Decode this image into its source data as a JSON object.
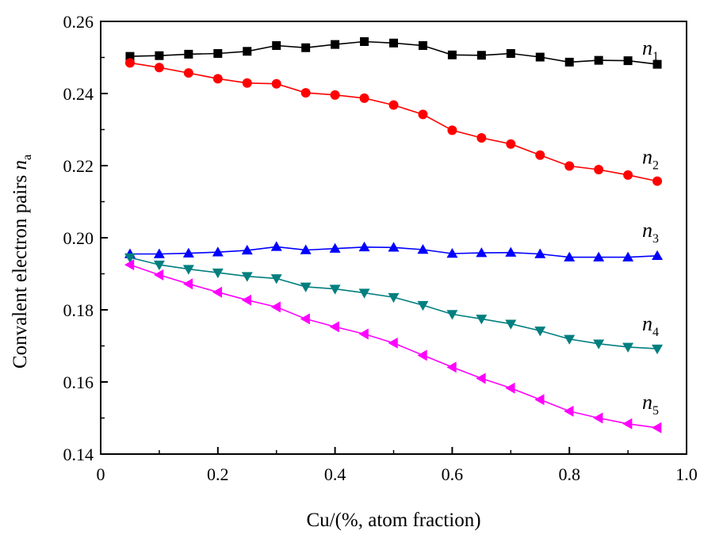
{
  "chart_data": {
    "type": "line",
    "title": "",
    "xlabel": "Cu/(%, atom fraction)",
    "ylabel": "Convalent electron pairs n",
    "ylabel_main": "Convalent electron pairs ",
    "ylabel_var": "n",
    "ylabel_sub": "a",
    "xlim": [
      0,
      1.0
    ],
    "ylim": [
      0.14,
      0.26
    ],
    "xticks": [
      0,
      0.2,
      0.4,
      0.6,
      0.8,
      1.0
    ],
    "xtick_labels": [
      "0",
      "0.2",
      "0.4",
      "0.6",
      "0.8",
      "1.0"
    ],
    "yticks": [
      0.14,
      0.16,
      0.18,
      0.2,
      0.22,
      0.24,
      0.26
    ],
    "ytick_labels": [
      "0.14",
      "0.16",
      "0.18",
      "0.20",
      "0.22",
      "0.24",
      "0.26"
    ],
    "grid": false,
    "x": [
      0.05,
      0.1,
      0.15,
      0.2,
      0.25,
      0.3,
      0.35,
      0.4,
      0.45,
      0.5,
      0.55,
      0.6,
      0.65,
      0.7,
      0.75,
      0.8,
      0.85,
      0.9,
      0.95
    ],
    "series": [
      {
        "name": "n1",
        "label_main": "n",
        "label_sub": "1",
        "color": "#000000",
        "marker": "square",
        "values": [
          0.2503,
          0.2505,
          0.2509,
          0.2511,
          0.2517,
          0.2533,
          0.2527,
          0.2536,
          0.2544,
          0.254,
          0.2533,
          0.2507,
          0.2506,
          0.2511,
          0.2501,
          0.2487,
          0.2492,
          0.2491,
          0.2481
        ]
      },
      {
        "name": "n2",
        "label_main": "n",
        "label_sub": "2",
        "color": "#ff0000",
        "marker": "circle",
        "values": [
          0.2485,
          0.2472,
          0.2457,
          0.2441,
          0.2429,
          0.2427,
          0.2402,
          0.2396,
          0.2387,
          0.2368,
          0.2342,
          0.2298,
          0.2277,
          0.226,
          0.2229,
          0.2199,
          0.2189,
          0.2174,
          0.2157
        ]
      },
      {
        "name": "n3",
        "label_main": "n",
        "label_sub": "3",
        "color": "#0000ff",
        "marker": "triangle-up",
        "values": [
          0.1955,
          0.1955,
          0.1957,
          0.196,
          0.1965,
          0.1975,
          0.1966,
          0.197,
          0.1974,
          0.1973,
          0.1967,
          0.1956,
          0.1958,
          0.1959,
          0.1955,
          0.1946,
          0.1946,
          0.1946,
          0.195
        ]
      },
      {
        "name": "n4",
        "label_main": "n",
        "label_sub": "4",
        "color": "#007f7f",
        "marker": "triangle-down",
        "values": [
          0.1945,
          0.1925,
          0.1913,
          0.1903,
          0.1893,
          0.1887,
          0.1864,
          0.1858,
          0.1847,
          0.1835,
          0.1813,
          0.1788,
          0.1775,
          0.1761,
          0.1742,
          0.1719,
          0.1706,
          0.1697,
          0.1692
        ]
      },
      {
        "name": "n5",
        "label_main": "n",
        "label_sub": "5",
        "color": "#ff00ff",
        "marker": "triangle-left",
        "values": [
          0.1925,
          0.1897,
          0.1872,
          0.1849,
          0.1827,
          0.1808,
          0.1775,
          0.1753,
          0.1733,
          0.1708,
          0.1674,
          0.1641,
          0.161,
          0.1583,
          0.1551,
          0.1519,
          0.15,
          0.1484,
          0.1473
        ]
      }
    ]
  }
}
